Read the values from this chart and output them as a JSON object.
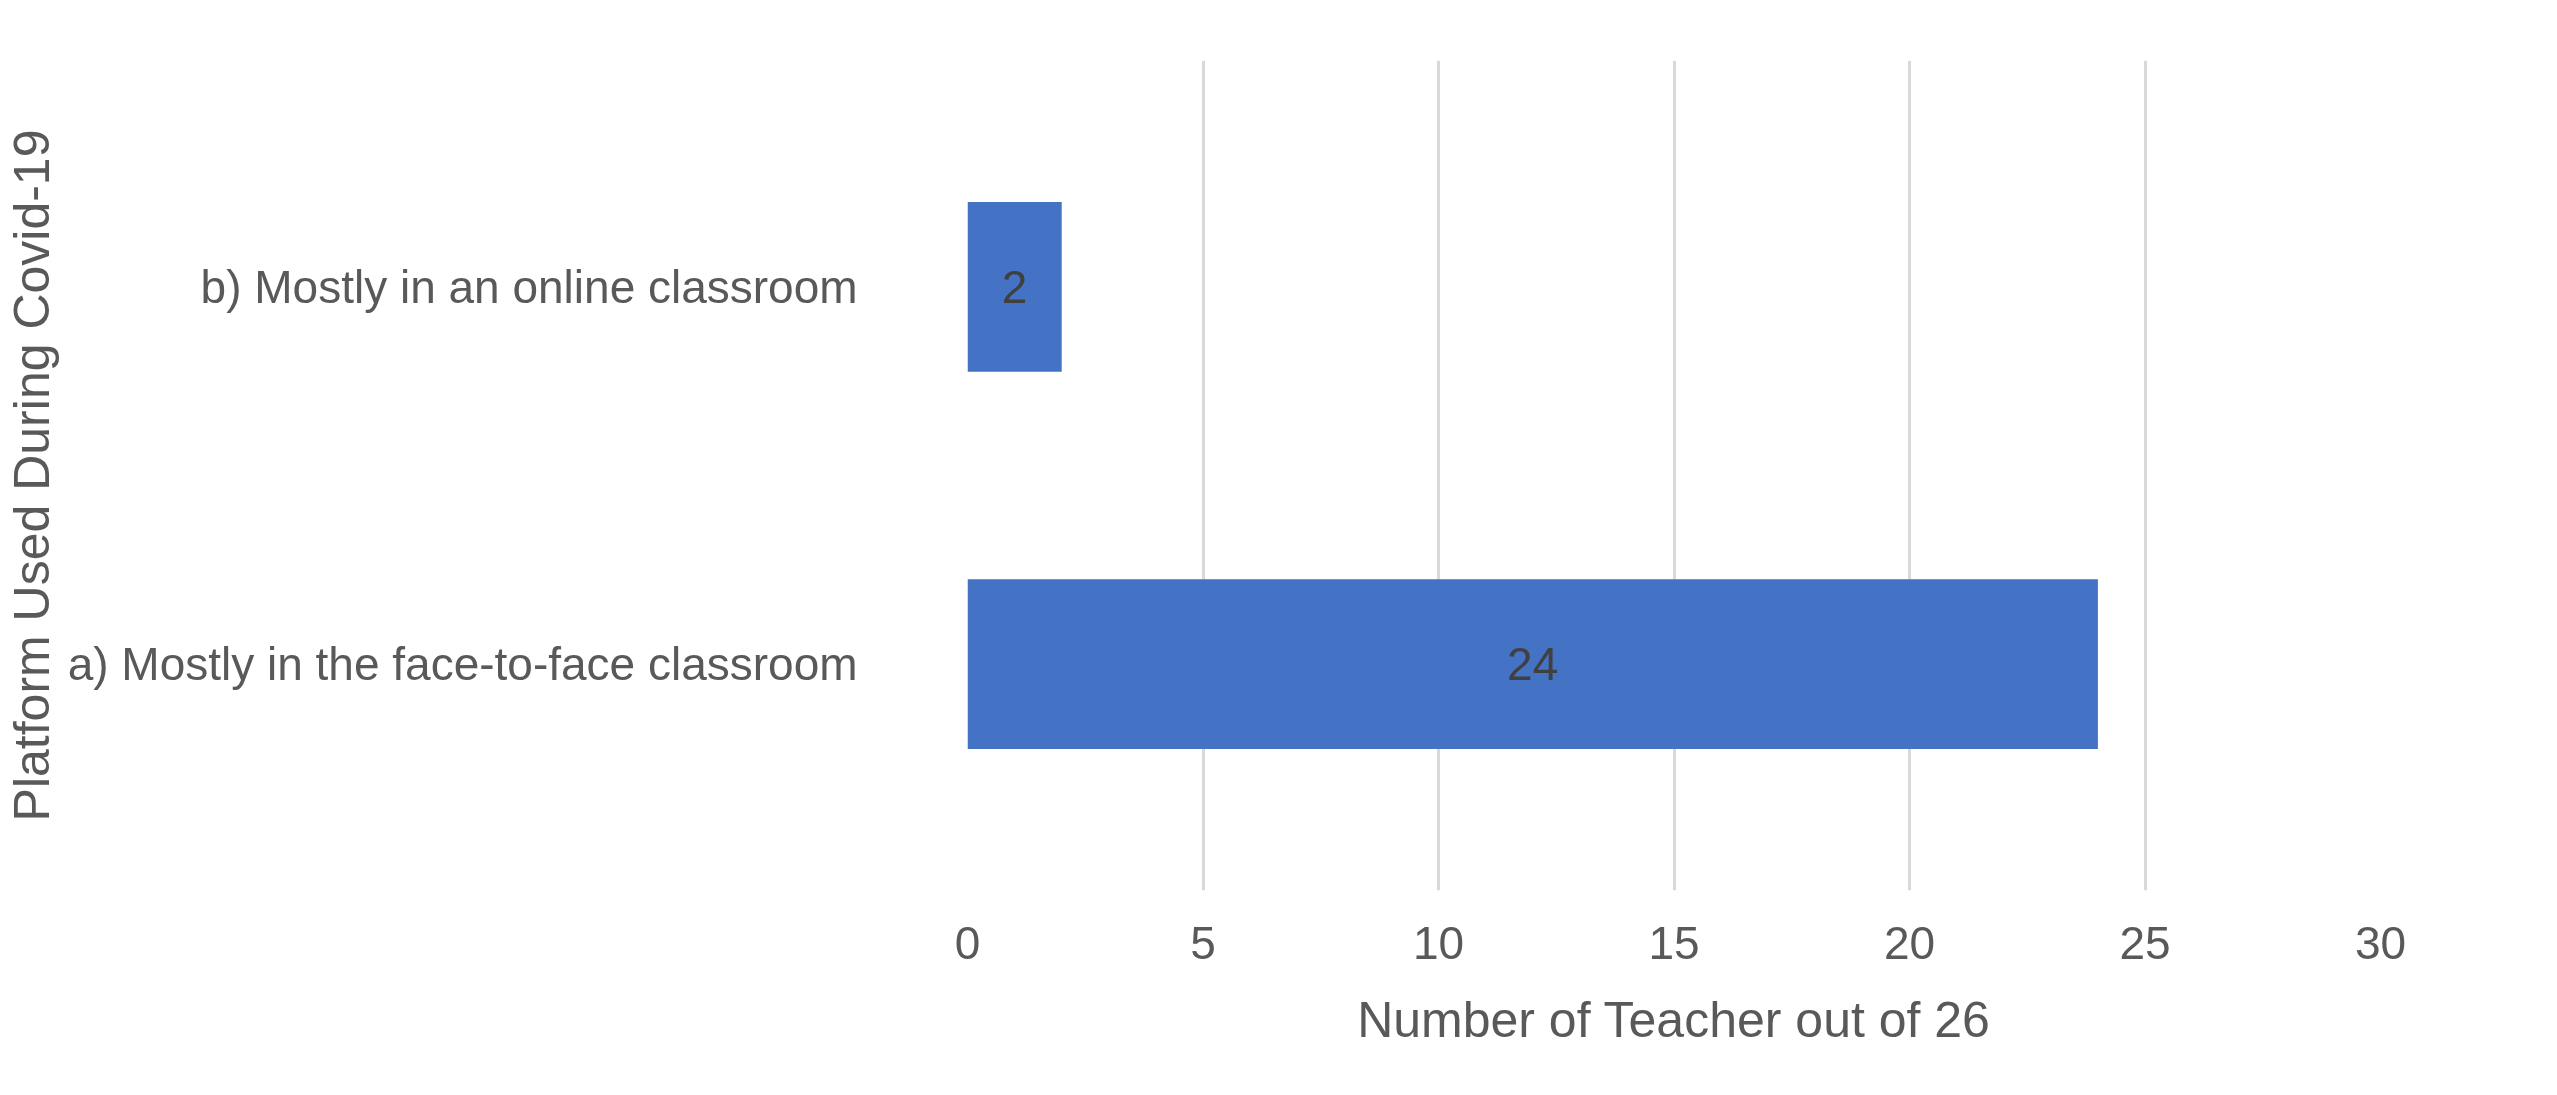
{
  "chart_data": {
    "type": "bar",
    "orientation": "horizontal",
    "categories": [
      "b)      Mostly in an online classroom",
      "a)      Mostly in the face-to-face classroom"
    ],
    "values": [
      2,
      24
    ],
    "color": "#4472c4",
    "xlim": [
      0,
      30
    ],
    "xticks": [
      0,
      5,
      10,
      15,
      20,
      25,
      30
    ],
    "xlabel": "Number of Teacher out of 26",
    "ylabel": "Platform Used During Covid-19",
    "grid": "x",
    "data_labels": true
  }
}
